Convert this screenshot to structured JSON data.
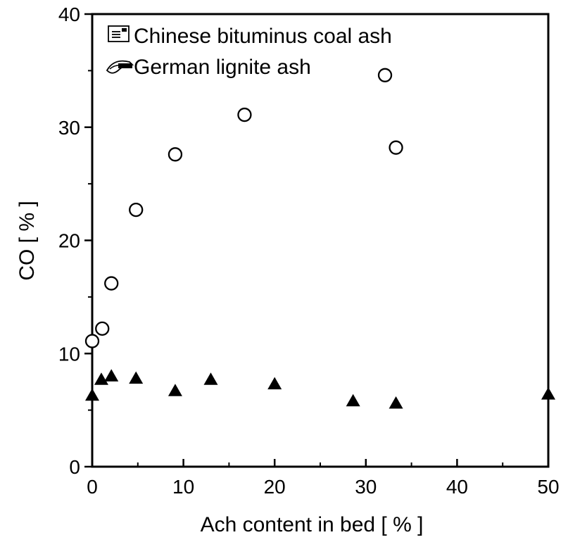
{
  "chart_data": {
    "type": "scatter",
    "title": "",
    "xlabel": "Ach content in bed [ % ]",
    "ylabel": "CO [ % ]",
    "xlim": [
      0,
      50
    ],
    "ylim": [
      0,
      40
    ],
    "x_ticks": [
      0,
      10,
      20,
      30,
      40,
      50
    ],
    "y_ticks": [
      0,
      10,
      20,
      30,
      40
    ],
    "x_tick_labels": [
      "0",
      "10",
      "20",
      "30",
      "40",
      "50"
    ],
    "y_tick_labels": [
      "0",
      "10",
      "20",
      "30",
      "40"
    ],
    "grid": false,
    "legend_position": "top-left",
    "series": [
      {
        "name": "Chinese bituminus coal ash",
        "marker": "open-circle",
        "color": "#000000",
        "points": [
          {
            "x": 0.0,
            "y": 11.1
          },
          {
            "x": 1.1,
            "y": 12.2
          },
          {
            "x": 2.1,
            "y": 16.2
          },
          {
            "x": 4.8,
            "y": 22.7
          },
          {
            "x": 9.1,
            "y": 27.6
          },
          {
            "x": 16.7,
            "y": 31.1
          },
          {
            "x": 32.1,
            "y": 34.6
          },
          {
            "x": 33.3,
            "y": 28.2
          }
        ]
      },
      {
        "name": "German lignite ash",
        "marker": "filled-triangle",
        "color": "#000000",
        "points": [
          {
            "x": 0.0,
            "y": 6.3
          },
          {
            "x": 1.0,
            "y": 7.7
          },
          {
            "x": 2.1,
            "y": 8.0
          },
          {
            "x": 4.8,
            "y": 7.8
          },
          {
            "x": 9.1,
            "y": 6.7
          },
          {
            "x": 13.0,
            "y": 7.7
          },
          {
            "x": 20.0,
            "y": 7.3
          },
          {
            "x": 28.6,
            "y": 5.8
          },
          {
            "x": 33.3,
            "y": 5.6
          },
          {
            "x": 50.0,
            "y": 6.4
          }
        ]
      }
    ]
  }
}
